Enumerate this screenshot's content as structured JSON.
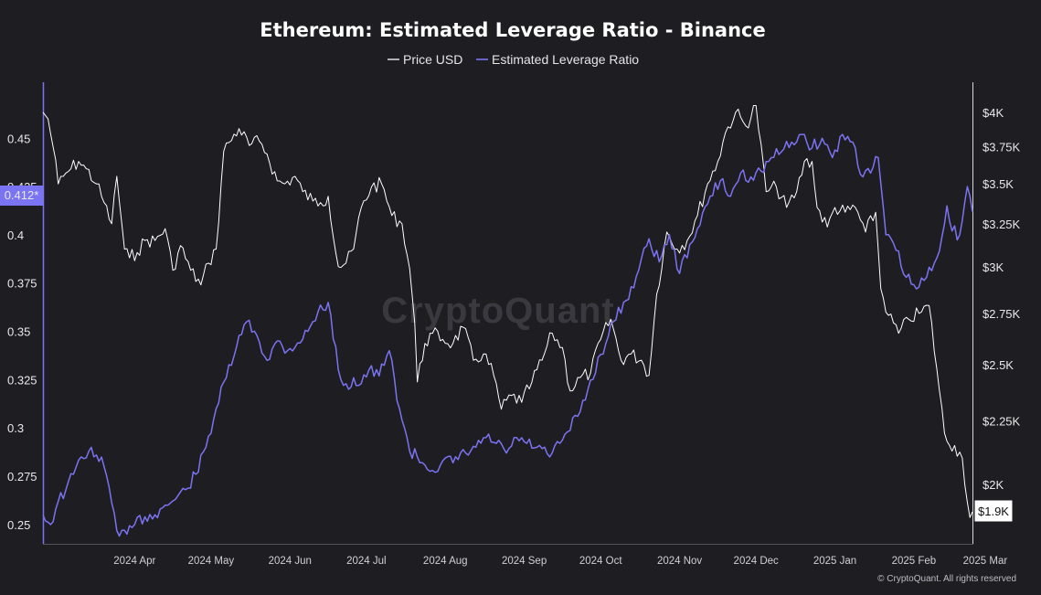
{
  "chart_data": {
    "type": "line",
    "title": "Ethereum: Estimated Leverage Ratio - Binance",
    "watermark": "CryptoQuant",
    "credit": "© CryptoQuant. All rights reserved",
    "legend_placement": "top-center",
    "grid": false,
    "x_range": [
      "2024-03-11",
      "2025-03-11"
    ],
    "x_ticks": [
      "2024 Apr",
      "2024 May",
      "2024 Jun",
      "2024 Jul",
      "2024 Aug",
      "2024 Sep",
      "2024 Oct",
      "2024 Nov",
      "2024 Dec",
      "2025 Jan",
      "2025 Feb",
      "2025 Mar"
    ],
    "y_left": {
      "range": [
        0.24,
        0.479
      ],
      "ticks": [
        "0.25",
        "0.275",
        "0.3",
        "0.325",
        "0.35",
        "0.375",
        "0.4",
        "0.425",
        "0.45"
      ]
    },
    "y_right": {
      "scale": "log",
      "range": [
        1790,
        4230
      ],
      "ticks": [
        "$2K",
        "$2.25K",
        "$2.5K",
        "$2.75K",
        "$3K",
        "$3.25K",
        "$3.5K",
        "$3.75K",
        "$4K"
      ]
    },
    "left_marker": "0.412*",
    "right_marker": "$1.9K",
    "series": [
      {
        "name": "Price USD",
        "color": "#ffffff",
        "axis": "right",
        "x": [
          "2024-03-11",
          "2024-03-13",
          "2024-03-15",
          "2024-03-17",
          "2024-03-19",
          "2024-03-22",
          "2024-03-25",
          "2024-03-28",
          "2024-04-01",
          "2024-04-04",
          "2024-04-07",
          "2024-04-09",
          "2024-04-12",
          "2024-04-14",
          "2024-04-17",
          "2024-04-20",
          "2024-04-24",
          "2024-04-28",
          "2024-05-01",
          "2024-05-04",
          "2024-05-08",
          "2024-05-12",
          "2024-05-15",
          "2024-05-18",
          "2024-05-21",
          "2024-05-23",
          "2024-05-27",
          "2024-05-31",
          "2024-06-04",
          "2024-06-07",
          "2024-06-11",
          "2024-06-14",
          "2024-06-18",
          "2024-06-21",
          "2024-06-25",
          "2024-06-28",
          "2024-07-01",
          "2024-07-05",
          "2024-07-08",
          "2024-07-11",
          "2024-07-14",
          "2024-07-18",
          "2024-07-22",
          "2024-07-26",
          "2024-07-30",
          "2024-08-02",
          "2024-08-04",
          "2024-08-05",
          "2024-08-08",
          "2024-08-11",
          "2024-08-15",
          "2024-08-19",
          "2024-08-23",
          "2024-08-27",
          "2024-08-31",
          "2024-09-04",
          "2024-09-07",
          "2024-09-11",
          "2024-09-15",
          "2024-09-19",
          "2024-09-23",
          "2024-09-27",
          "2024-10-01",
          "2024-10-04",
          "2024-10-08",
          "2024-10-12",
          "2024-10-16",
          "2024-10-20",
          "2024-10-24",
          "2024-10-28",
          "2024-11-01",
          "2024-11-04",
          "2024-11-07",
          "2024-11-11",
          "2024-11-15",
          "2024-11-19",
          "2024-11-23",
          "2024-11-27",
          "2024-12-01",
          "2024-12-04",
          "2024-12-08",
          "2024-12-12",
          "2024-12-16",
          "2024-12-20",
          "2024-12-24",
          "2024-12-28",
          "2025-01-01",
          "2025-01-04",
          "2025-01-07",
          "2025-01-09",
          "2025-01-13",
          "2025-01-16",
          "2025-01-20",
          "2025-01-24",
          "2025-01-28",
          "2025-02-01",
          "2025-02-03",
          "2025-02-06",
          "2025-02-10",
          "2025-02-14",
          "2025-02-18",
          "2025-02-22",
          "2025-02-25",
          "2025-02-28",
          "2025-03-02",
          "2025-03-04",
          "2025-03-07",
          "2025-03-10",
          "2025-03-11"
        ],
        "values": [
          4000,
          3950,
          3750,
          3500,
          3550,
          3600,
          3650,
          3600,
          3500,
          3380,
          3250,
          3550,
          3100,
          3050,
          3080,
          3150,
          3150,
          3220,
          2980,
          3120,
          2980,
          2900,
          3020,
          3100,
          3720,
          3780,
          3880,
          3760,
          3790,
          3700,
          3520,
          3500,
          3550,
          3450,
          3390,
          3380,
          3420,
          3000,
          3020,
          3100,
          3350,
          3480,
          3500,
          3300,
          3250,
          2990,
          2700,
          2420,
          2600,
          2650,
          2620,
          2600,
          2680,
          2520,
          2550,
          2450,
          2300,
          2360,
          2330,
          2420,
          2520,
          2650,
          2580,
          2380,
          2440,
          2460,
          2620,
          2720,
          2520,
          2550,
          2520,
          2450,
          2850,
          3200,
          3100,
          3150,
          3300,
          3500,
          3650,
          3850,
          4000,
          3900,
          4050,
          3450,
          3480,
          3350,
          3450,
          3650,
          3650,
          3350,
          3230,
          3350,
          3320,
          3350,
          3200,
          3320,
          2880,
          2740,
          2650,
          2720,
          2750,
          2790,
          2480,
          2200,
          2150,
          2150,
          2100,
          1880,
          1900
        ]
      },
      {
        "name": "Estimated Leverage Ratio",
        "color": "#7b74f2",
        "axis": "left",
        "x": [
          "2024-03-11",
          "2024-03-14",
          "2024-03-17",
          "2024-03-20",
          "2024-03-23",
          "2024-03-26",
          "2024-03-29",
          "2024-04-01",
          "2024-04-04",
          "2024-04-08",
          "2024-04-10",
          "2024-04-13",
          "2024-04-16",
          "2024-04-20",
          "2024-04-24",
          "2024-04-28",
          "2024-05-02",
          "2024-05-06",
          "2024-05-10",
          "2024-05-14",
          "2024-05-18",
          "2024-05-22",
          "2024-05-26",
          "2024-05-30",
          "2024-06-03",
          "2024-06-07",
          "2024-06-11",
          "2024-06-15",
          "2024-06-19",
          "2024-06-23",
          "2024-06-27",
          "2024-07-01",
          "2024-07-05",
          "2024-07-09",
          "2024-07-11",
          "2024-07-13",
          "2024-07-17",
          "2024-07-21",
          "2024-07-25",
          "2024-07-29",
          "2024-08-02",
          "2024-08-05",
          "2024-08-07",
          "2024-08-11",
          "2024-08-15",
          "2024-08-19",
          "2024-08-24",
          "2024-08-28",
          "2024-09-01",
          "2024-09-05",
          "2024-09-09",
          "2024-09-13",
          "2024-09-17",
          "2024-09-21",
          "2024-09-26",
          "2024-09-30",
          "2024-10-03",
          "2024-10-07",
          "2024-10-11",
          "2024-10-16",
          "2024-10-21",
          "2024-10-26",
          "2024-10-31",
          "2024-11-04",
          "2024-11-08",
          "2024-11-12",
          "2024-11-16",
          "2024-11-20",
          "2024-11-24",
          "2024-11-28",
          "2024-12-02",
          "2024-12-06",
          "2024-12-10",
          "2024-12-14",
          "2024-12-18",
          "2024-12-22",
          "2024-12-26",
          "2024-12-30",
          "2025-01-03",
          "2025-01-07",
          "2025-01-11",
          "2025-01-15",
          "2025-01-19",
          "2025-01-23",
          "2025-01-27",
          "2025-01-31",
          "2025-02-02",
          "2025-02-05",
          "2025-02-09",
          "2025-02-13",
          "2025-02-17",
          "2025-02-21",
          "2025-02-25",
          "2025-03-01",
          "2025-03-03",
          "2025-03-06",
          "2025-03-09",
          "2025-03-11"
        ],
        "values": [
          0.255,
          0.25,
          0.262,
          0.268,
          0.276,
          0.285,
          0.288,
          0.286,
          0.28,
          0.256,
          0.244,
          0.245,
          0.25,
          0.254,
          0.255,
          0.26,
          0.263,
          0.268,
          0.276,
          0.29,
          0.31,
          0.326,
          0.342,
          0.355,
          0.348,
          0.335,
          0.345,
          0.34,
          0.344,
          0.35,
          0.36,
          0.365,
          0.33,
          0.32,
          0.326,
          0.322,
          0.33,
          0.327,
          0.34,
          0.31,
          0.288,
          0.285,
          0.282,
          0.278,
          0.283,
          0.282,
          0.287,
          0.29,
          0.295,
          0.292,
          0.287,
          0.295,
          0.292,
          0.29,
          0.285,
          0.292,
          0.298,
          0.306,
          0.32,
          0.338,
          0.355,
          0.366,
          0.382,
          0.398,
          0.386,
          0.4,
          0.38,
          0.395,
          0.405,
          0.42,
          0.428,
          0.42,
          0.432,
          0.43,
          0.433,
          0.44,
          0.443,
          0.448,
          0.452,
          0.445,
          0.45,
          0.44,
          0.452,
          0.448,
          0.43,
          0.435,
          0.44,
          0.4,
          0.392,
          0.378,
          0.372,
          0.378,
          0.388,
          0.415,
          0.402,
          0.4,
          0.425,
          0.412
        ]
      }
    ]
  }
}
